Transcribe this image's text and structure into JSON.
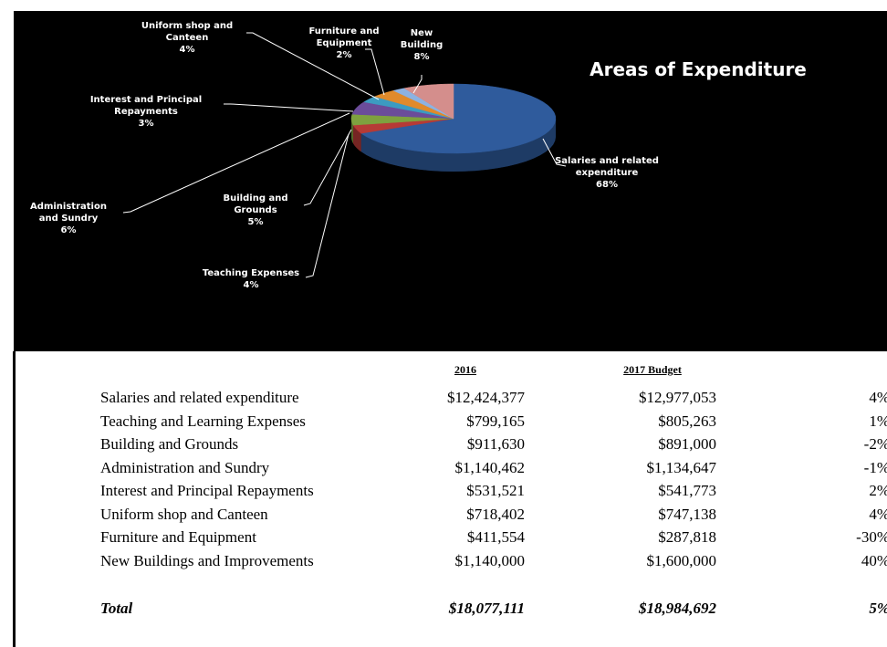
{
  "chart_data": {
    "type": "pie",
    "title": "Areas of Expenditure",
    "categories": [
      "Salaries and related expenditure",
      "Teaching Expenses",
      "Building and Grounds",
      "Administration and Sundry",
      "Interest and Principal Repayments",
      "Uniform shop and Canteen",
      "Furniture and Equipment",
      "New Building"
    ],
    "values": [
      68,
      4,
      5,
      6,
      3,
      4,
      2,
      8
    ],
    "value_labels": [
      "68%",
      "4%",
      "5%",
      "6%",
      "3%",
      "4%",
      "2%",
      "8%"
    ],
    "colors": [
      "#2f5b9c",
      "#b63a36",
      "#7ea13f",
      "#6b4c9a",
      "#3c9bc1",
      "#e08a2b",
      "#8cb2e2",
      "#d48e8c"
    ]
  },
  "table": {
    "header": [
      "2016",
      "2017 Budget"
    ],
    "rows": [
      [
        "Salaries and related expenditure",
        "$12,424,377",
        "$12,977,053",
        "4%"
      ],
      [
        "Teaching and Learning Expenses",
        "$799,165",
        "$805,263",
        "1%"
      ],
      [
        "Building and Grounds",
        "$911,630",
        "$891,000",
        "-2%"
      ],
      [
        "Administration and Sundry",
        "$1,140,462",
        "$1,134,647",
        "-1%"
      ],
      [
        "Interest and Principal Repayments",
        "$531,521",
        "$541,773",
        "2%"
      ],
      [
        "Uniform shop and Canteen",
        "$718,402",
        "$747,138",
        "4%"
      ],
      [
        "Furniture and Equipment",
        "$411,554",
        "$287,818",
        "-30%"
      ],
      [
        "New Buildings and Improvements",
        "$1,140,000",
        "$1,600,000",
        "40%"
      ]
    ],
    "total": [
      "Total",
      "$18,077,111",
      "$18,984,692",
      "5%"
    ]
  }
}
